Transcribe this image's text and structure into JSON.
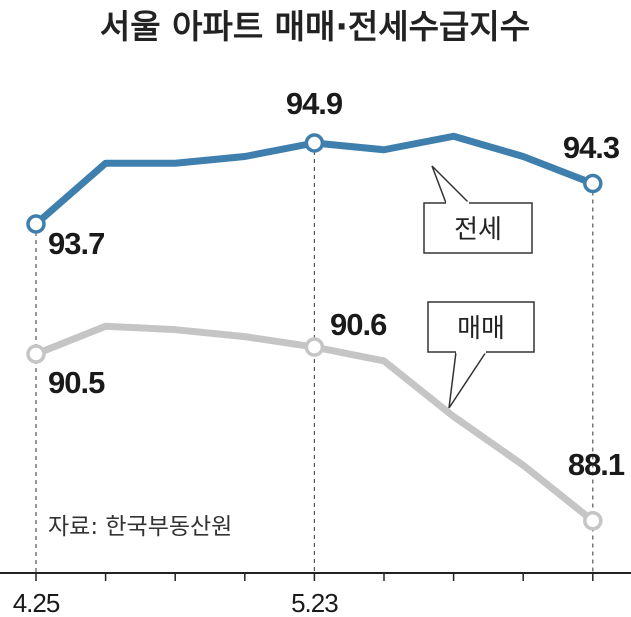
{
  "chart_data": {
    "type": "line",
    "title": "서울 아파트 매매·전세수급지수",
    "source": "자료: 한국부동산원",
    "x": [
      "4.25",
      "",
      "",
      "",
      "5.23",
      "",
      "",
      "",
      ""
    ],
    "xticks": [
      "4.25",
      "5.23"
    ],
    "series": [
      {
        "name": "전세",
        "color": "#3f7fae",
        "values": [
          93.7,
          94.6,
          94.6,
          94.7,
          94.9,
          94.8,
          95.0,
          94.7,
          94.3
        ],
        "labels": {
          "0": "93.7",
          "4": "94.9",
          "8": "94.3"
        }
      },
      {
        "name": "매매",
        "color": "#c5c5c5",
        "values": [
          90.5,
          90.9,
          90.85,
          90.75,
          90.6,
          90.4,
          89.6,
          88.9,
          88.1
        ],
        "labels": {
          "0": "90.5",
          "4": "90.6",
          "8": "88.1"
        }
      }
    ]
  }
}
